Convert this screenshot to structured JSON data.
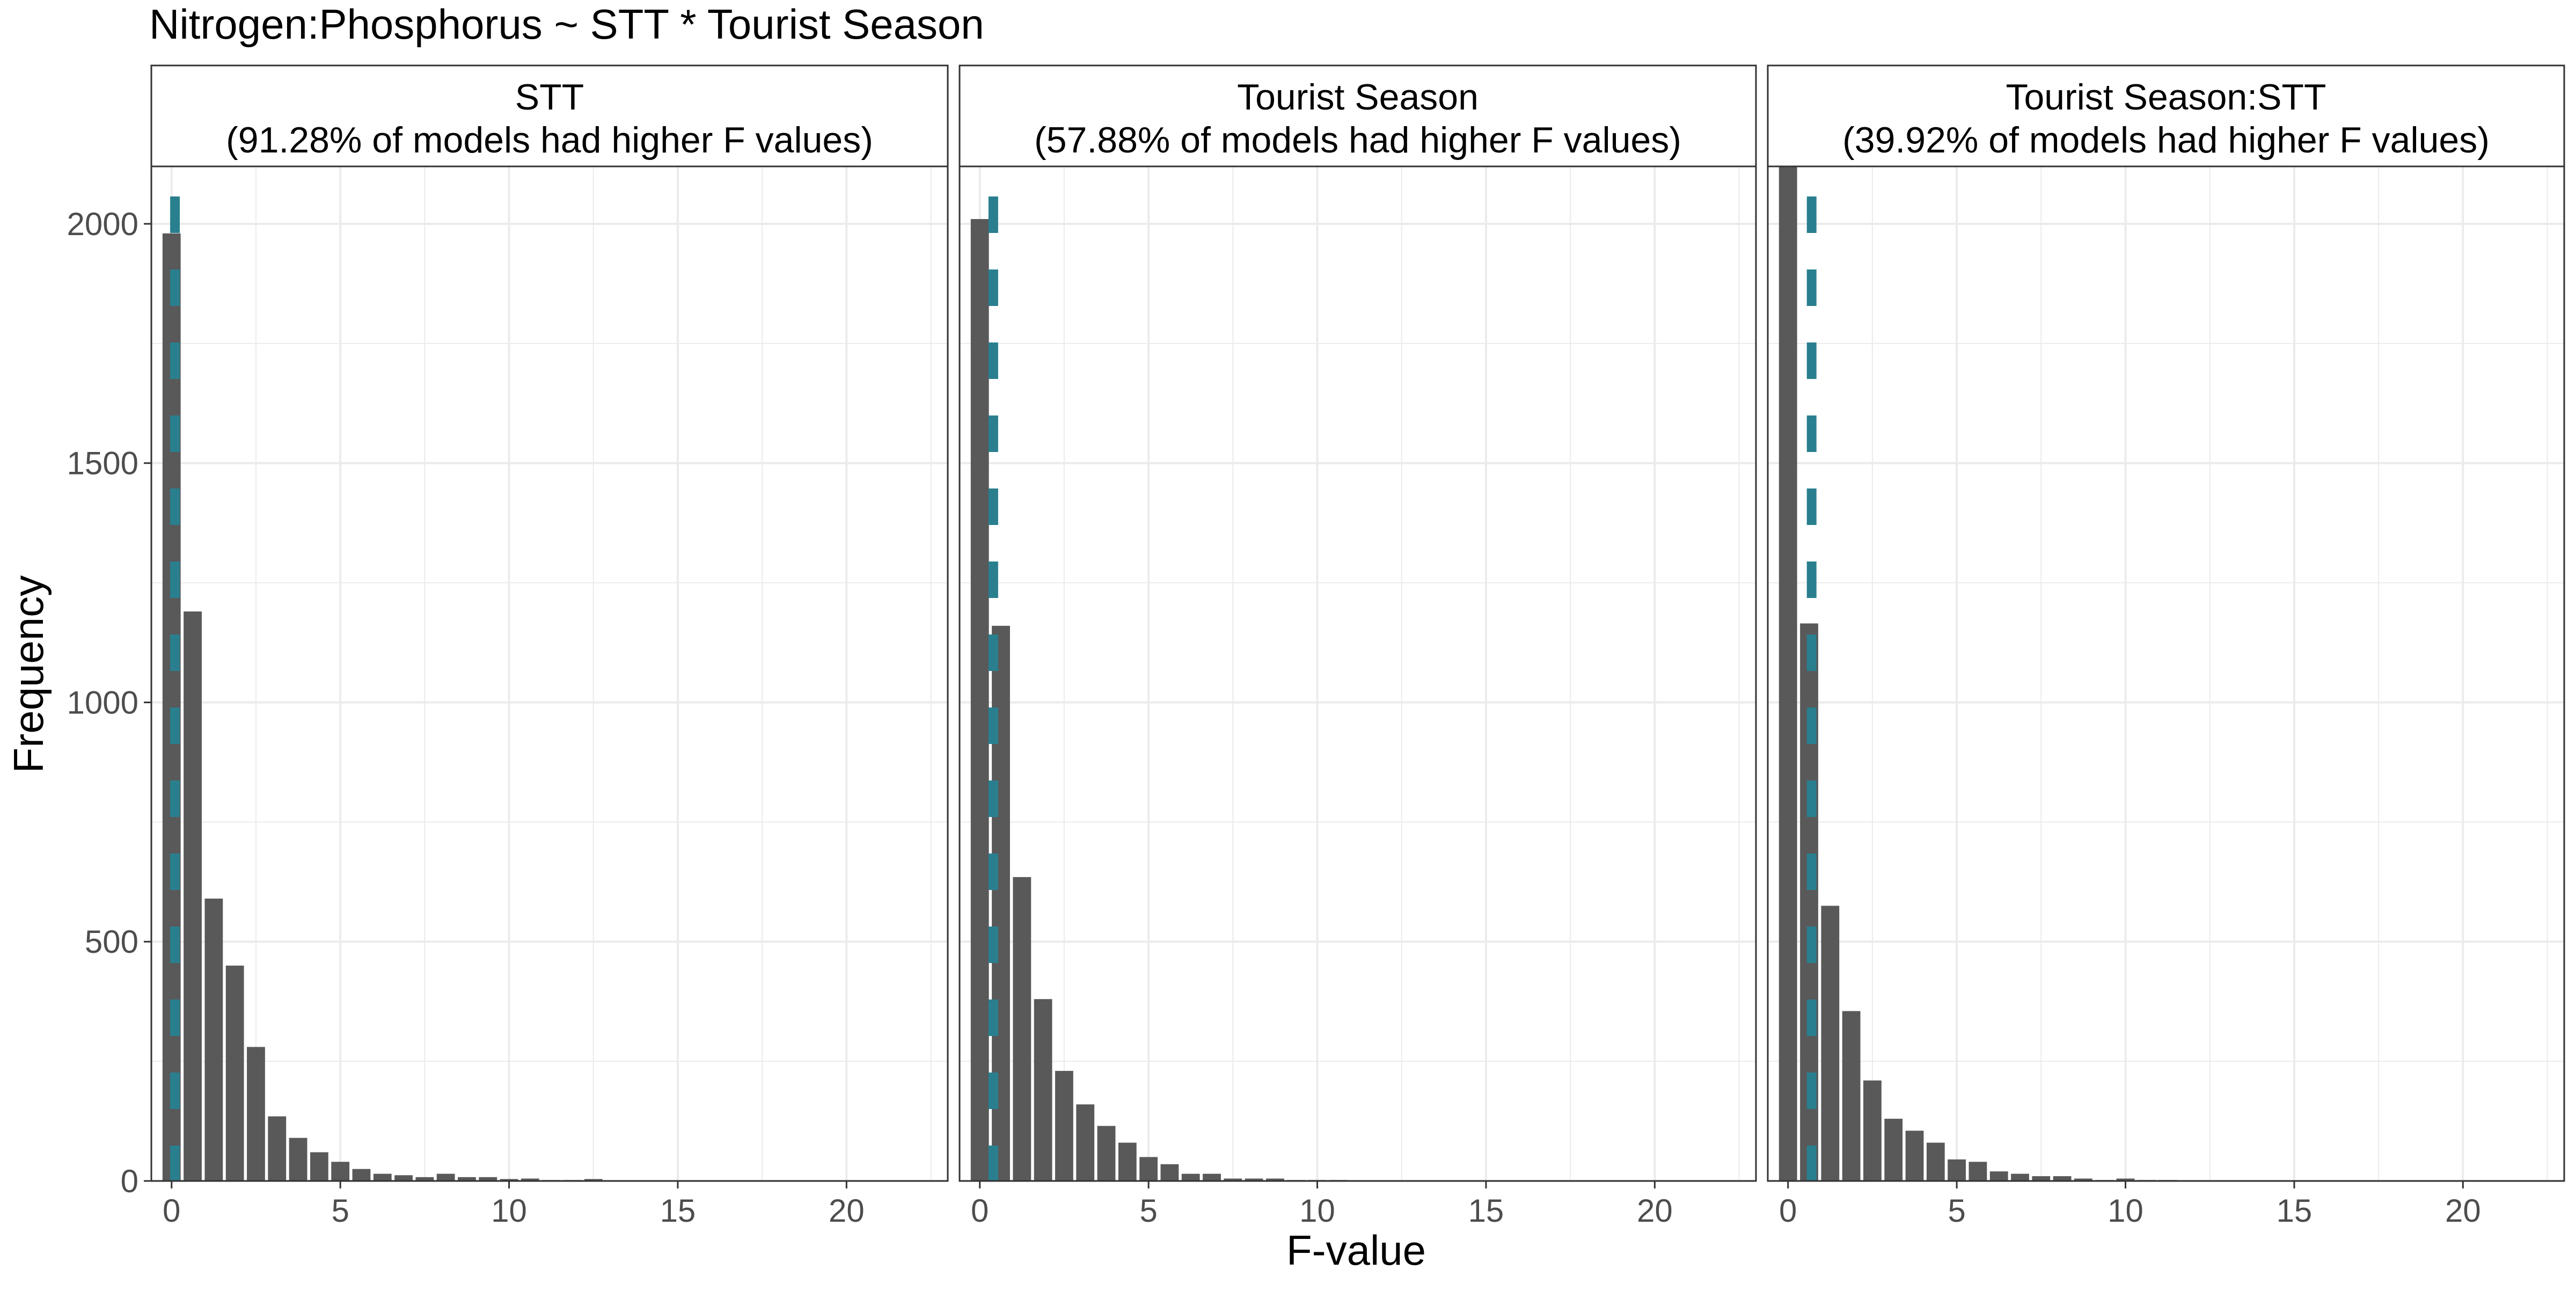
{
  "title": "Nitrogen:Phosphorus ~ STT * Tourist Season",
  "xlabel": "F-value",
  "ylabel": "Frequency",
  "colors": {
    "bar": "#595959",
    "reference_line": "#2a7f8f",
    "grid": "#ebebeb",
    "border": "#333333",
    "text": "#000000",
    "tick_text": "#4d4d4d"
  },
  "chart_data": [
    {
      "type": "bar",
      "facet_title": "STT",
      "facet_subtitle": "(91.28% of models had higher F values)",
      "x": [
        0,
        0.625,
        1.25,
        1.875,
        2.5,
        3.125,
        3.75,
        4.375,
        5,
        5.625,
        6.25,
        6.875,
        7.5,
        8.125,
        8.75,
        9.375,
        10,
        10.625,
        11.25,
        11.875,
        12.5
      ],
      "values": [
        1980,
        1190,
        590,
        450,
        280,
        135,
        90,
        60,
        40,
        25,
        15,
        12,
        8,
        15,
        8,
        8,
        4,
        5,
        2,
        2,
        4
      ],
      "reference_f": 0.1,
      "xlim": [
        -0.6,
        23
      ],
      "ylim": [
        0,
        2120
      ],
      "x_ticks": [
        0,
        5,
        10,
        15,
        20
      ],
      "y_ticks": [
        0,
        500,
        1000,
        1500,
        2000
      ]
    },
    {
      "type": "bar",
      "facet_title": "Tourist Season",
      "facet_subtitle": "(57.88% of models had higher F values)",
      "x": [
        0,
        0.625,
        1.25,
        1.875,
        2.5,
        3.125,
        3.75,
        4.375,
        5,
        5.625,
        6.25,
        6.875,
        7.5,
        8.125,
        8.75,
        9.375,
        10,
        10.625
      ],
      "values": [
        2010,
        1160,
        635,
        380,
        230,
        160,
        115,
        80,
        50,
        35,
        15,
        15,
        5,
        5,
        5,
        2,
        2,
        2
      ],
      "reference_f": 0.4,
      "xlim": [
        -0.6,
        23
      ],
      "ylim": [
        0,
        2120
      ],
      "x_ticks": [
        0,
        5,
        10,
        15,
        20
      ],
      "y_ticks": [
        0,
        500,
        1000,
        1500,
        2000
      ]
    },
    {
      "type": "bar",
      "facet_title": "Tourist Season:STT",
      "facet_subtitle": "(39.92% of models had higher F values)",
      "x": [
        0,
        0.625,
        1.25,
        1.875,
        2.5,
        3.125,
        3.75,
        4.375,
        5,
        5.625,
        6.25,
        6.875,
        7.5,
        8.125,
        8.75,
        9.375,
        10,
        10.625,
        11.25
      ],
      "values": [
        2200,
        1165,
        575,
        355,
        210,
        130,
        105,
        80,
        45,
        40,
        20,
        15,
        10,
        10,
        5,
        2,
        5,
        2,
        2
      ],
      "reference_f": 0.7,
      "xlim": [
        -0.6,
        23
      ],
      "ylim": [
        0,
        2120
      ],
      "x_ticks": [
        0,
        5,
        10,
        15,
        20
      ],
      "y_ticks": [
        0,
        500,
        1000,
        1500,
        2000
      ]
    }
  ]
}
